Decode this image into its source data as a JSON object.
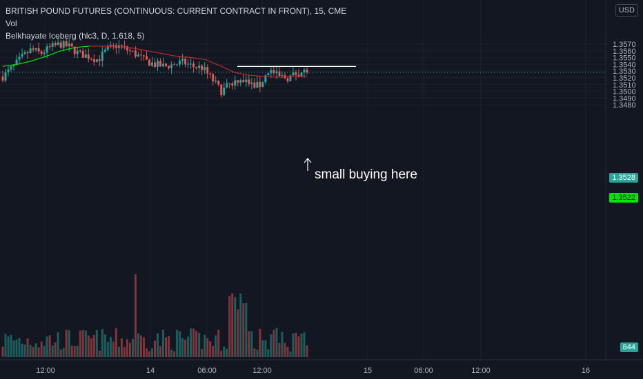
{
  "header": {
    "title": "BRITISH POUND FUTURES (CONTINUOUS: CURRENT CONTRACT IN FRONT), 15, CME",
    "vol_label": "Vol",
    "indicator_label": "Belkhayate Iceberg (hlc3, D, 1.618, 5)"
  },
  "currency_button": "USD",
  "annotation": {
    "text": "small buying here"
  },
  "colors": {
    "background": "#131722",
    "up": "#26a69a",
    "down": "#ef5350",
    "iceberg_line_up": "#00e600",
    "iceberg_line_down": "#c62828",
    "grid": "#1e222d"
  },
  "badges": {
    "last_price": "1.3528",
    "line_value": "1.3522",
    "volume": "844"
  },
  "chart_data": {
    "type": "candlestick",
    "title": "BRITISH POUND FUTURES (CONTINUOUS: CURRENT CONTRACT IN FRONT), 15, CME",
    "ylim": [
      1.3483,
      1.3577
    ],
    "yticks": [
      "1.3570",
      "1.3560",
      "1.3550",
      "1.3540",
      "1.3530",
      "1.3520",
      "1.3510",
      "1.3500",
      "1.3490",
      "1.3480"
    ],
    "xticks": [
      "12:00",
      "14",
      "06:00",
      "12:00",
      "15",
      "06:00",
      "12:00",
      "16"
    ],
    "grid": true,
    "price_path": [
      1.3522,
      1.3535,
      1.355,
      1.3562,
      1.3556,
      1.3565,
      1.357,
      1.3566,
      1.3556,
      1.3552,
      1.3547,
      1.3562,
      1.3568,
      1.3562,
      1.3555,
      1.3545,
      1.354,
      1.3537,
      1.354,
      1.3543,
      1.3537,
      1.3535,
      1.3518,
      1.35,
      1.3512,
      1.352,
      1.351,
      1.3508,
      1.3532,
      1.3522,
      1.352,
      1.3528,
      1.353
    ],
    "resistance_line": 1.3537,
    "iceberg_line": [
      1.3537,
      1.354,
      1.3545,
      1.3552,
      1.356,
      1.3565,
      1.3567,
      1.3567,
      1.3566,
      1.3564,
      1.356,
      1.3556,
      1.3552,
      1.355,
      1.3547,
      1.3538,
      1.3528,
      1.3524,
      1.3522,
      1.3521,
      1.3522,
      1.3522
    ],
    "iceberg_turn_index": 6,
    "volume_badge": 844
  }
}
